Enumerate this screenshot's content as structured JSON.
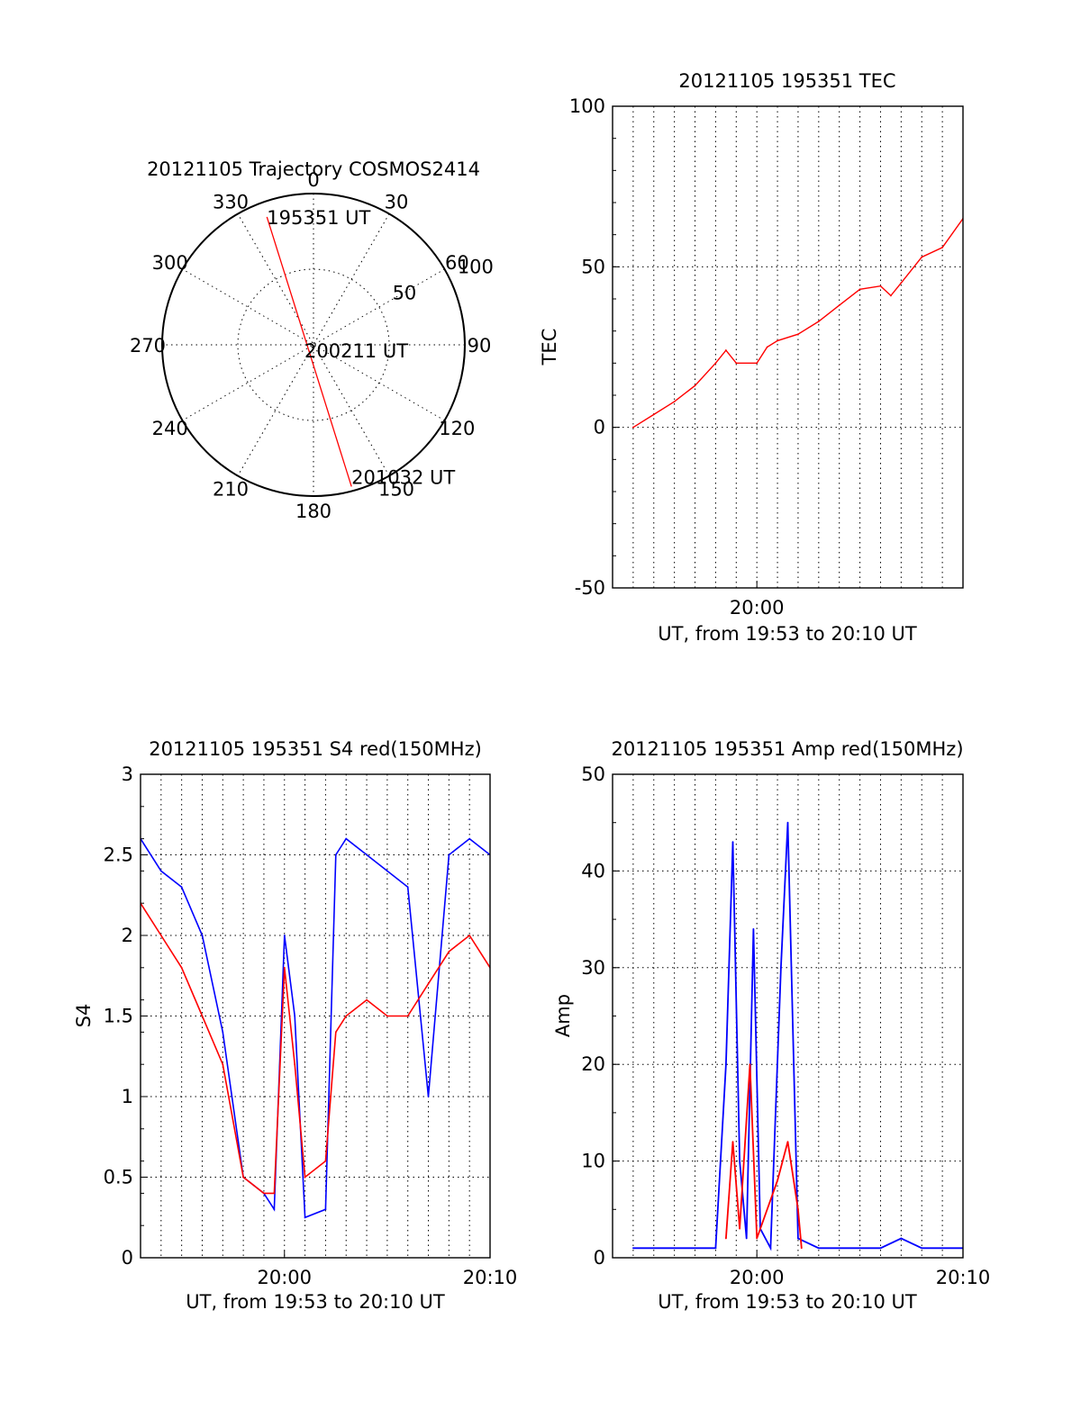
{
  "chart_data": [
    {
      "type": "polar",
      "title": "20121105 Trajectory COSMOS2414",
      "angle_labels": [
        "0",
        "30",
        "60",
        "90",
        "120",
        "150",
        "180",
        "210",
        "240",
        "270",
        "300",
        "330"
      ],
      "radial_labels": [
        "50",
        "100"
      ],
      "radial_range": [
        0,
        100
      ],
      "grid": true,
      "colors": {
        "track": "#ff0000"
      },
      "track": {
        "start": {
          "label": "195351 UT",
          "azimuth": 340,
          "value": 90
        },
        "middle": {
          "label": "200211 UT",
          "azimuth": 0,
          "value": 0
        },
        "end": {
          "label": "201032 UT",
          "azimuth": 165,
          "value": 97
        }
      }
    },
    {
      "type": "line",
      "title": "20121105 195351 TEC",
      "xlabel": "UT, from 19:53 to 20:10 UT",
      "ylabel": "TEC",
      "xlim": [
        "19:53",
        "20:10"
      ],
      "ylim": [
        -50,
        100
      ],
      "yticks": [
        "100",
        "50",
        "0",
        "-50"
      ],
      "xtick_labels": [
        {
          "t": "20:00",
          "label": "20:00"
        }
      ],
      "grid": true,
      "series": [
        {
          "color": "#ff0000",
          "points": [
            [
              "19:54",
              0
            ],
            [
              "19:55",
              4
            ],
            [
              "19:56",
              8
            ],
            [
              "19:57",
              13
            ],
            [
              "19:58",
              20
            ],
            [
              "19:58:30",
              24
            ],
            [
              "19:59",
              20
            ],
            [
              "20:00",
              20
            ],
            [
              "20:00:30",
              25
            ],
            [
              "20:01",
              27
            ],
            [
              "20:02",
              29
            ],
            [
              "20:03",
              33
            ],
            [
              "20:04",
              38
            ],
            [
              "20:05",
              43
            ],
            [
              "20:06",
              44
            ],
            [
              "20:06:30",
              41
            ],
            [
              "20:07",
              45
            ],
            [
              "20:08",
              53
            ],
            [
              "20:09",
              56
            ],
            [
              "20:10",
              65
            ]
          ]
        }
      ]
    },
    {
      "type": "line",
      "title": "20121105 195351 S4 red(150MHz)",
      "xlabel": "UT, from 19:53 to 20:10 UT",
      "ylabel": "S4",
      "xlim": [
        "19:53",
        "20:10"
      ],
      "ylim": [
        0,
        3
      ],
      "yticks": [
        "3",
        "2.5",
        "2",
        "1.5",
        "1",
        "0.5",
        "0"
      ],
      "xtick_labels": [
        {
          "t": "20:00",
          "label": "20:00"
        },
        {
          "t": "20:10",
          "label": "20:10"
        }
      ],
      "grid": true,
      "series": [
        {
          "color": "#0000ff",
          "points": [
            [
              "19:53",
              2.6
            ],
            [
              "19:54",
              2.4
            ],
            [
              "19:55",
              2.3
            ],
            [
              "19:56",
              2.0
            ],
            [
              "19:57",
              1.4
            ],
            [
              "19:58",
              0.5
            ],
            [
              "19:59",
              0.4
            ],
            [
              "19:59:30",
              0.3
            ],
            [
              "20:00",
              2.0
            ],
            [
              "20:00:30",
              1.5
            ],
            [
              "20:01",
              0.25
            ],
            [
              "20:02",
              0.3
            ],
            [
              "20:02:30",
              2.5
            ],
            [
              "20:03",
              2.6
            ],
            [
              "20:04",
              2.5
            ],
            [
              "20:05",
              2.4
            ],
            [
              "20:06",
              2.3
            ],
            [
              "20:07",
              1.0
            ],
            [
              "20:08",
              2.5
            ],
            [
              "20:09",
              2.6
            ],
            [
              "20:10",
              2.5
            ]
          ]
        },
        {
          "color": "#ff0000",
          "points": [
            [
              "19:53",
              2.2
            ],
            [
              "19:54",
              2.0
            ],
            [
              "19:55",
              1.8
            ],
            [
              "19:56",
              1.5
            ],
            [
              "19:57",
              1.2
            ],
            [
              "19:58",
              0.5
            ],
            [
              "19:59",
              0.4
            ],
            [
              "19:59:30",
              0.4
            ],
            [
              "20:00",
              1.8
            ],
            [
              "20:00:30",
              1.2
            ],
            [
              "20:01",
              0.5
            ],
            [
              "20:02",
              0.6
            ],
            [
              "20:02:30",
              1.4
            ],
            [
              "20:03",
              1.5
            ],
            [
              "20:04",
              1.6
            ],
            [
              "20:05",
              1.5
            ],
            [
              "20:06",
              1.5
            ],
            [
              "20:07",
              1.7
            ],
            [
              "20:08",
              1.9
            ],
            [
              "20:09",
              2.0
            ],
            [
              "20:10",
              1.8
            ]
          ]
        }
      ]
    },
    {
      "type": "line",
      "title": "20121105 195351 Amp red(150MHz)",
      "xlabel": "UT, from 19:53 to 20:10 UT",
      "ylabel": "Amp",
      "xlim": [
        "19:53",
        "20:10"
      ],
      "ylim": [
        0,
        50
      ],
      "yticks": [
        "50",
        "40",
        "30",
        "20",
        "10",
        "0"
      ],
      "xtick_labels": [
        {
          "t": "20:00",
          "label": "20:00"
        },
        {
          "t": "20:10",
          "label": "20:10"
        }
      ],
      "grid": true,
      "series": [
        {
          "color": "#0000ff",
          "points": [
            [
              "19:54",
              1
            ],
            [
              "19:58",
              1
            ],
            [
              "19:58:30",
              20
            ],
            [
              "19:58:50",
              43
            ],
            [
              "19:59:10",
              10
            ],
            [
              "19:59:30",
              2
            ],
            [
              "19:59:50",
              34
            ],
            [
              "20:00:10",
              3
            ],
            [
              "20:00:40",
              1
            ],
            [
              "20:01:10",
              30
            ],
            [
              "20:01:30",
              45
            ],
            [
              "20:02",
              2
            ],
            [
              "20:03",
              1
            ],
            [
              "20:06",
              1
            ],
            [
              "20:07",
              2
            ],
            [
              "20:08",
              1
            ],
            [
              "20:10",
              1
            ]
          ]
        },
        {
          "color": "#ff0000",
          "points": [
            [
              "19:58:30",
              2
            ],
            [
              "19:58:50",
              12
            ],
            [
              "19:59:10",
              3
            ],
            [
              "19:59:40",
              20
            ],
            [
              "20:00:00",
              2
            ],
            [
              "20:01",
              8
            ],
            [
              "20:01:30",
              12
            ],
            [
              "20:02",
              5
            ],
            [
              "20:02:10",
              1
            ]
          ]
        }
      ]
    }
  ]
}
